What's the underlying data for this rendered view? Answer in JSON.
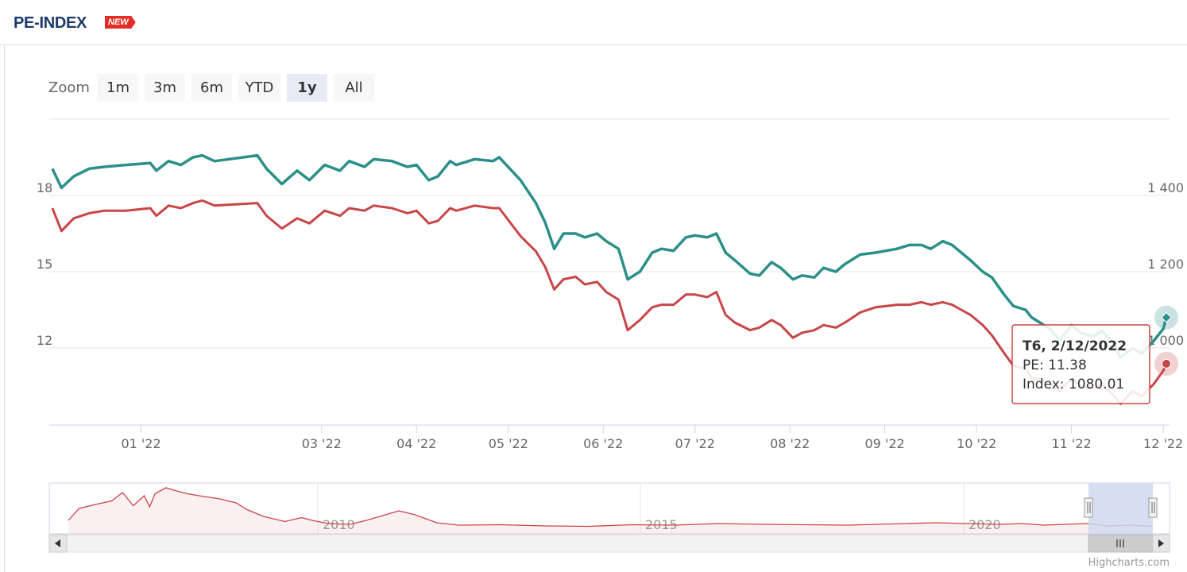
{
  "header": {
    "title": "PE-INDEX",
    "badge": "NEW"
  },
  "zoom": {
    "label": "Zoom",
    "buttons": [
      "1m",
      "3m",
      "6m",
      "YTD",
      "1y",
      "All"
    ],
    "selected": "1y"
  },
  "colors": {
    "index": "#2b8f8a",
    "pe": "#c94547",
    "selection": "#d0d8ee"
  },
  "credits": "Highcharts.com",
  "chart_data": {
    "type": "line",
    "x_tick_labels": [
      "01 '22",
      "03 '22",
      "04 '22",
      "05 '22",
      "06 '22",
      "07 '22",
      "08 '22",
      "09 '22",
      "10 '22",
      "11 '22",
      "12 '22"
    ],
    "y_left_ticks": [
      "18",
      "15",
      "12"
    ],
    "y_right_ticks": [
      "1 400",
      "1 200",
      "1 000"
    ],
    "y_left_values": [
      18,
      15,
      12
    ],
    "y_right_values": [
      1400,
      1200,
      1000
    ],
    "series": [
      {
        "name": "Index",
        "axis": "right",
        "points": [
          [
            "2021-12-03",
            1470
          ],
          [
            "2021-12-06",
            1420
          ],
          [
            "2021-12-10",
            1450
          ],
          [
            "2021-12-15",
            1470
          ],
          [
            "2021-12-20",
            1475
          ],
          [
            "2021-12-27",
            1480
          ],
          [
            "2022-01-04",
            1485
          ],
          [
            "2022-01-06",
            1465
          ],
          [
            "2022-01-10",
            1490
          ],
          [
            "2022-01-14",
            1480
          ],
          [
            "2022-01-18",
            1500
          ],
          [
            "2022-01-21",
            1505
          ],
          [
            "2022-01-25",
            1490
          ],
          [
            "2022-02-08",
            1505
          ],
          [
            "2022-02-11",
            1470
          ],
          [
            "2022-02-16",
            1430
          ],
          [
            "2022-02-21",
            1465
          ],
          [
            "2022-02-25",
            1440
          ],
          [
            "2022-03-02",
            1480
          ],
          [
            "2022-03-07",
            1465
          ],
          [
            "2022-03-10",
            1490
          ],
          [
            "2022-03-15",
            1475
          ],
          [
            "2022-03-18",
            1495
          ],
          [
            "2022-03-24",
            1490
          ],
          [
            "2022-03-29",
            1475
          ],
          [
            "2022-04-01",
            1480
          ],
          [
            "2022-04-05",
            1440
          ],
          [
            "2022-04-08",
            1450
          ],
          [
            "2022-04-12",
            1490
          ],
          [
            "2022-04-14",
            1480
          ],
          [
            "2022-04-20",
            1495
          ],
          [
            "2022-04-26",
            1490
          ],
          [
            "2022-04-28",
            1500
          ],
          [
            "2022-05-05",
            1440
          ],
          [
            "2022-05-10",
            1380
          ],
          [
            "2022-05-13",
            1330
          ],
          [
            "2022-05-16",
            1260
          ],
          [
            "2022-05-19",
            1300
          ],
          [
            "2022-05-23",
            1300
          ],
          [
            "2022-05-26",
            1290
          ],
          [
            "2022-05-30",
            1300
          ],
          [
            "2022-06-02",
            1280
          ],
          [
            "2022-06-06",
            1260
          ],
          [
            "2022-06-09",
            1180
          ],
          [
            "2022-06-13",
            1200
          ],
          [
            "2022-06-17",
            1250
          ],
          [
            "2022-06-20",
            1260
          ],
          [
            "2022-06-24",
            1255
          ],
          [
            "2022-06-28",
            1290
          ],
          [
            "2022-07-01",
            1295
          ],
          [
            "2022-07-05",
            1290
          ],
          [
            "2022-07-08",
            1300
          ],
          [
            "2022-07-11",
            1250
          ],
          [
            "2022-07-14",
            1230
          ],
          [
            "2022-07-19",
            1195
          ],
          [
            "2022-07-22",
            1190
          ],
          [
            "2022-07-26",
            1225
          ],
          [
            "2022-07-29",
            1210
          ],
          [
            "2022-08-02",
            1180
          ],
          [
            "2022-08-05",
            1190
          ],
          [
            "2022-08-09",
            1185
          ],
          [
            "2022-08-12",
            1210
          ],
          [
            "2022-08-16",
            1200
          ],
          [
            "2022-08-19",
            1220
          ],
          [
            "2022-08-24",
            1245
          ],
          [
            "2022-08-29",
            1250
          ],
          [
            "2022-09-05",
            1260
          ],
          [
            "2022-09-09",
            1270
          ],
          [
            "2022-09-13",
            1270
          ],
          [
            "2022-09-16",
            1260
          ],
          [
            "2022-09-20",
            1280
          ],
          [
            "2022-09-23",
            1270
          ],
          [
            "2022-09-26",
            1250
          ],
          [
            "2022-09-29",
            1230
          ],
          [
            "2022-10-03",
            1200
          ],
          [
            "2022-10-06",
            1185
          ],
          [
            "2022-10-10",
            1140
          ],
          [
            "2022-10-13",
            1110
          ],
          [
            "2022-10-17",
            1100
          ],
          [
            "2022-10-19",
            1080
          ],
          [
            "2022-10-21",
            1070
          ],
          [
            "2022-10-25",
            1050
          ],
          [
            "2022-10-28",
            1020
          ],
          [
            "2022-11-01",
            1060
          ],
          [
            "2022-11-04",
            1040
          ],
          [
            "2022-11-08",
            1030
          ],
          [
            "2022-11-11",
            1045
          ],
          [
            "2022-11-15",
            1010
          ],
          [
            "2022-11-17",
            975
          ],
          [
            "2022-11-21",
            1000
          ],
          [
            "2022-11-24",
            985
          ],
          [
            "2022-11-28",
            1020
          ],
          [
            "2022-12-01",
            1050
          ],
          [
            "2022-12-02",
            1080
          ]
        ]
      },
      {
        "name": "PE",
        "axis": "left",
        "points": [
          [
            "2021-12-03",
            17.5
          ],
          [
            "2021-12-06",
            16.6
          ],
          [
            "2021-12-10",
            17.1
          ],
          [
            "2021-12-15",
            17.3
          ],
          [
            "2021-12-20",
            17.4
          ],
          [
            "2021-12-27",
            17.4
          ],
          [
            "2022-01-04",
            17.5
          ],
          [
            "2022-01-06",
            17.2
          ],
          [
            "2022-01-10",
            17.6
          ],
          [
            "2022-01-14",
            17.5
          ],
          [
            "2022-01-18",
            17.7
          ],
          [
            "2022-01-21",
            17.8
          ],
          [
            "2022-01-25",
            17.6
          ],
          [
            "2022-02-08",
            17.7
          ],
          [
            "2022-02-11",
            17.2
          ],
          [
            "2022-02-16",
            16.7
          ],
          [
            "2022-02-21",
            17.1
          ],
          [
            "2022-02-25",
            16.9
          ],
          [
            "2022-03-02",
            17.4
          ],
          [
            "2022-03-07",
            17.2
          ],
          [
            "2022-03-10",
            17.5
          ],
          [
            "2022-03-15",
            17.4
          ],
          [
            "2022-03-18",
            17.6
          ],
          [
            "2022-03-24",
            17.5
          ],
          [
            "2022-03-29",
            17.3
          ],
          [
            "2022-04-01",
            17.4
          ],
          [
            "2022-04-05",
            16.9
          ],
          [
            "2022-04-08",
            17.0
          ],
          [
            "2022-04-12",
            17.5
          ],
          [
            "2022-04-14",
            17.4
          ],
          [
            "2022-04-20",
            17.6
          ],
          [
            "2022-04-26",
            17.5
          ],
          [
            "2022-04-28",
            17.5
          ],
          [
            "2022-05-05",
            16.4
          ],
          [
            "2022-05-10",
            15.8
          ],
          [
            "2022-05-13",
            15.2
          ],
          [
            "2022-05-16",
            14.3
          ],
          [
            "2022-05-19",
            14.7
          ],
          [
            "2022-05-23",
            14.8
          ],
          [
            "2022-05-26",
            14.5
          ],
          [
            "2022-05-30",
            14.6
          ],
          [
            "2022-06-02",
            14.2
          ],
          [
            "2022-06-06",
            13.9
          ],
          [
            "2022-06-09",
            12.7
          ],
          [
            "2022-06-13",
            13.1
          ],
          [
            "2022-06-17",
            13.6
          ],
          [
            "2022-06-20",
            13.7
          ],
          [
            "2022-06-24",
            13.7
          ],
          [
            "2022-06-28",
            14.1
          ],
          [
            "2022-07-01",
            14.1
          ],
          [
            "2022-07-05",
            14.0
          ],
          [
            "2022-07-08",
            14.2
          ],
          [
            "2022-07-11",
            13.3
          ],
          [
            "2022-07-14",
            13.0
          ],
          [
            "2022-07-19",
            12.7
          ],
          [
            "2022-07-22",
            12.8
          ],
          [
            "2022-07-26",
            13.1
          ],
          [
            "2022-07-29",
            12.9
          ],
          [
            "2022-08-02",
            12.4
          ],
          [
            "2022-08-05",
            12.6
          ],
          [
            "2022-08-09",
            12.7
          ],
          [
            "2022-08-12",
            12.9
          ],
          [
            "2022-08-16",
            12.8
          ],
          [
            "2022-08-19",
            13.0
          ],
          [
            "2022-08-24",
            13.4
          ],
          [
            "2022-08-29",
            13.6
          ],
          [
            "2022-09-05",
            13.7
          ],
          [
            "2022-09-09",
            13.7
          ],
          [
            "2022-09-13",
            13.8
          ],
          [
            "2022-09-16",
            13.7
          ],
          [
            "2022-09-20",
            13.8
          ],
          [
            "2022-09-23",
            13.7
          ],
          [
            "2022-09-26",
            13.5
          ],
          [
            "2022-09-29",
            13.3
          ],
          [
            "2022-10-03",
            12.9
          ],
          [
            "2022-10-06",
            12.5
          ],
          [
            "2022-10-10",
            11.8
          ],
          [
            "2022-10-13",
            11.3
          ],
          [
            "2022-10-17",
            11.2
          ],
          [
            "2022-10-19",
            10.8
          ],
          [
            "2022-10-21",
            10.8
          ],
          [
            "2022-10-25",
            10.6
          ],
          [
            "2022-10-28",
            10.3
          ],
          [
            "2022-11-01",
            10.8
          ],
          [
            "2022-11-04",
            10.5
          ],
          [
            "2022-11-08",
            10.4
          ],
          [
            "2022-11-11",
            10.6
          ],
          [
            "2022-11-15",
            10.1
          ],
          [
            "2022-11-17",
            9.8
          ],
          [
            "2022-11-21",
            10.3
          ],
          [
            "2022-11-24",
            10.1
          ],
          [
            "2022-11-28",
            10.6
          ],
          [
            "2022-12-01",
            11.1
          ],
          [
            "2022-12-02",
            11.38
          ]
        ]
      }
    ],
    "tooltip": {
      "title": "T6, 2/12/2022",
      "pe_text": "PE: 11.38",
      "index_text": "Index: 1080.01"
    },
    "navigator": {
      "year_labels": [
        "2010",
        "2015",
        "2020"
      ],
      "profile": [
        [
          0.0,
          0.18
        ],
        [
          0.01,
          0.48
        ],
        [
          0.025,
          0.58
        ],
        [
          0.04,
          0.67
        ],
        [
          0.05,
          0.88
        ],
        [
          0.06,
          0.55
        ],
        [
          0.07,
          0.8
        ],
        [
          0.075,
          0.52
        ],
        [
          0.08,
          0.85
        ],
        [
          0.09,
          1.0
        ],
        [
          0.1,
          0.92
        ],
        [
          0.11,
          0.85
        ],
        [
          0.125,
          0.78
        ],
        [
          0.14,
          0.72
        ],
        [
          0.155,
          0.62
        ],
        [
          0.165,
          0.45
        ],
        [
          0.18,
          0.28
        ],
        [
          0.2,
          0.15
        ],
        [
          0.215,
          0.25
        ],
        [
          0.225,
          0.18
        ],
        [
          0.24,
          0.1
        ],
        [
          0.26,
          0.08
        ],
        [
          0.275,
          0.18
        ],
        [
          0.29,
          0.3
        ],
        [
          0.305,
          0.42
        ],
        [
          0.32,
          0.32
        ],
        [
          0.34,
          0.12
        ],
        [
          0.36,
          0.06
        ],
        [
          0.4,
          0.07
        ],
        [
          0.44,
          0.04
        ],
        [
          0.48,
          0.03
        ],
        [
          0.52,
          0.07
        ],
        [
          0.56,
          0.06
        ],
        [
          0.6,
          0.1
        ],
        [
          0.64,
          0.08
        ],
        [
          0.68,
          0.07
        ],
        [
          0.72,
          0.06
        ],
        [
          0.76,
          0.09
        ],
        [
          0.8,
          0.12
        ],
        [
          0.83,
          0.1
        ],
        [
          0.86,
          0.08
        ],
        [
          0.88,
          0.1
        ],
        [
          0.9,
          0.06
        ],
        [
          0.92,
          0.08
        ],
        [
          0.94,
          0.1
        ],
        [
          0.96,
          0.04
        ],
        [
          0.98,
          0.06
        ],
        [
          1.0,
          0.03
        ]
      ]
    }
  }
}
